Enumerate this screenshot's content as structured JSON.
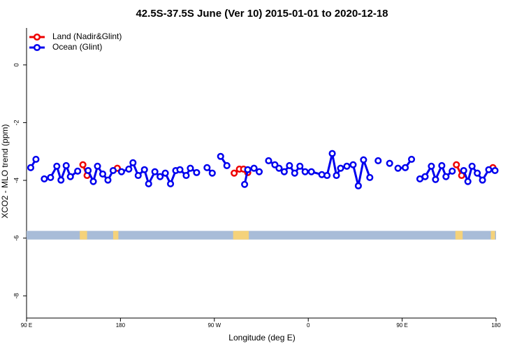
{
  "chart_data": {
    "type": "line",
    "title": "42.5S-37.5S June (Ver 10)   2015-01-01 to 2020-12-18",
    "x_label": "Longitude (deg E)",
    "y_label": "XCO2 - MLO trend (ppm)",
    "xlim": [
      90,
      540
    ],
    "ylim": [
      -8.77,
      1.28
    ],
    "xticks": [
      {
        "value": 90,
        "label": "90 E"
      },
      180,
      {
        "value": 270,
        "label": "90 W"
      },
      {
        "value": 360,
        "label": "0"
      },
      {
        "value": 450,
        "label": "90 E"
      },
      {
        "value": 540,
        "label": "180"
      }
    ],
    "yticks": [
      0,
      -2,
      -4,
      -6,
      -8
    ],
    "legend": "top-left",
    "land_mask": {
      "ylim": [
        -6.05,
        -5.75
      ],
      "color": "#a8bcd8",
      "land_color": "#f5d27a",
      "land_ranges": [
        [
          141,
          148
        ],
        [
          173,
          178
        ],
        [
          288,
          303
        ],
        [
          501,
          508
        ],
        [
          535,
          539
        ]
      ]
    },
    "series": [
      {
        "name": "Land (Nadir&Glint)",
        "color": "#ee0000",
        "x": [
          144,
          148,
          null,
          177,
          null,
          289,
          294,
          298,
          302,
          null,
          502,
          507,
          null,
          537
        ],
        "values": [
          -3.46,
          -3.83,
          null,
          -3.58,
          null,
          -3.75,
          -3.61,
          -3.61,
          -3.73,
          null,
          -3.46,
          -3.83,
          null,
          -3.56
        ]
      },
      {
        "name": "Ocean (Glint)",
        "color": "#0000ee",
        "x": [
          94,
          99,
          null,
          107,
          113,
          119,
          123,
          128,
          132,
          139,
          null,
          149,
          154,
          158,
          163,
          168,
          173,
          null,
          181,
          188,
          192,
          197,
          203,
          207,
          213,
          218,
          223,
          228,
          233,
          237,
          243,
          247,
          253,
          null,
          263,
          268,
          null,
          276,
          282,
          null,
          299,
          302,
          308,
          313,
          null,
          322,
          328,
          332,
          337,
          342,
          347,
          352,
          357,
          363,
          373,
          378,
          383,
          387,
          391,
          397,
          403,
          408,
          413,
          419,
          null,
          427,
          null,
          438,
          null,
          446,
          453,
          459,
          null,
          467,
          472,
          478,
          482,
          488,
          492,
          498,
          null,
          509,
          513,
          517,
          522,
          527,
          533,
          539
        ],
        "values": [
          -3.56,
          -3.27,
          null,
          -3.95,
          -3.9,
          -3.51,
          -3.99,
          -3.49,
          -3.87,
          -3.68,
          null,
          -3.66,
          -4.04,
          -3.51,
          -3.78,
          -3.99,
          -3.66,
          null,
          -3.7,
          -3.61,
          -3.39,
          -3.83,
          -3.63,
          -4.12,
          -3.7,
          -3.87,
          -3.75,
          -4.12,
          -3.66,
          -3.63,
          -3.83,
          -3.58,
          -3.73,
          null,
          -3.56,
          -3.75,
          null,
          -3.17,
          -3.49,
          null,
          -4.14,
          -3.63,
          -3.58,
          -3.7,
          null,
          -3.32,
          -3.46,
          -3.58,
          -3.7,
          -3.49,
          -3.75,
          -3.51,
          -3.7,
          -3.7,
          -3.8,
          -3.83,
          -3.07,
          -3.83,
          -3.58,
          -3.51,
          -3.46,
          -4.19,
          -3.29,
          -3.9,
          null,
          -3.32,
          null,
          -3.41,
          null,
          -3.58,
          -3.56,
          -3.27,
          null,
          -3.95,
          -3.87,
          -3.51,
          -3.97,
          -3.49,
          -3.87,
          -3.68,
          null,
          -3.66,
          -4.04,
          -3.51,
          -3.75,
          -3.99,
          -3.63,
          -3.66
        ]
      }
    ]
  }
}
